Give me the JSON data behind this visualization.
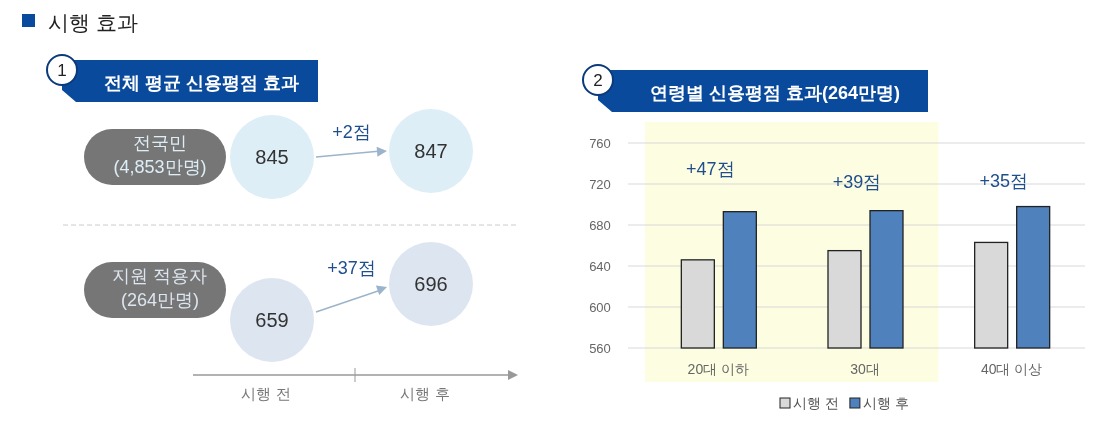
{
  "chart_data": [
    {
      "type": "other",
      "title": "전체 평균 신용평점 효과",
      "annotations": [
        "시행 효과",
        "1",
        "+2점",
        "+37점"
      ],
      "categories": [
        "시행 전",
        "시행 후"
      ],
      "data_labels": true,
      "series": [
        {
          "name": "전국민\n(4,853만명)",
          "color": "#ddeef6",
          "values": [
            845,
            847
          ]
        },
        {
          "name": "지원 적용자\n(264만명)",
          "color": "#dde6f0",
          "values": [
            659,
            696
          ]
        }
      ]
    },
    {
      "type": "bar",
      "title": "연령별 신용평점 효과(264만명)",
      "categories": [
        "20대 이하",
        "30대",
        "40대 이상"
      ],
      "series": [
        {
          "name": "시행 전",
          "color": "#d9d9d9",
          "values": [
            646,
            655,
            663
          ]
        },
        {
          "name": "시행 후",
          "color": "#4f81bd",
          "values": [
            693,
            694,
            698
          ]
        }
      ],
      "ylim": [
        560,
        760
      ],
      "yticks": [
        560,
        600,
        640,
        680,
        720,
        760
      ],
      "grid": "y",
      "legend": "bottom",
      "bands": [
        {
          "axis": "x",
          "from": "20대 이하",
          "to": "30대",
          "color": "#fdfde1"
        }
      ],
      "annotations": [
        "2",
        "+47점",
        "+39점",
        "+35점"
      ]
    }
  ]
}
